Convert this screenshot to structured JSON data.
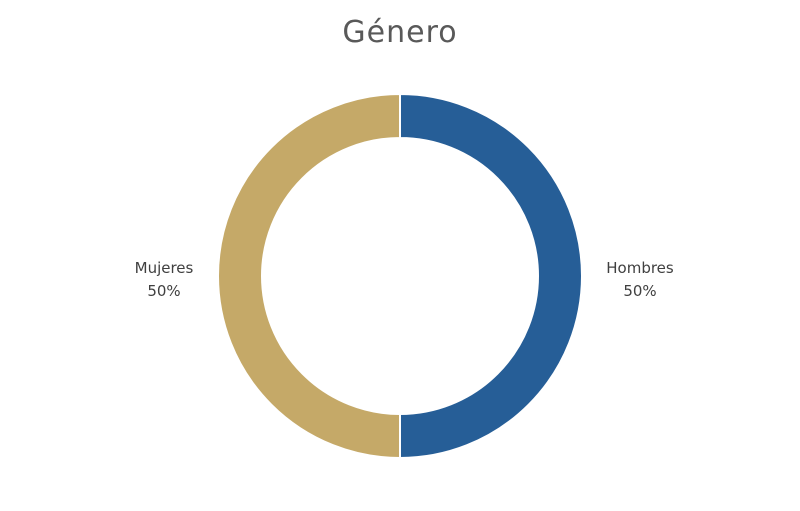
{
  "chart_data": {
    "type": "pie",
    "donut": true,
    "title": "Género",
    "slices": [
      {
        "label": "Hombres",
        "value": 50,
        "value_label": "50%",
        "color": "#265e97"
      },
      {
        "label": "Mujeres",
        "value": 50,
        "value_label": "50%",
        "color": "#c5a968"
      }
    ],
    "legend": "none",
    "data_labels": "outside"
  }
}
